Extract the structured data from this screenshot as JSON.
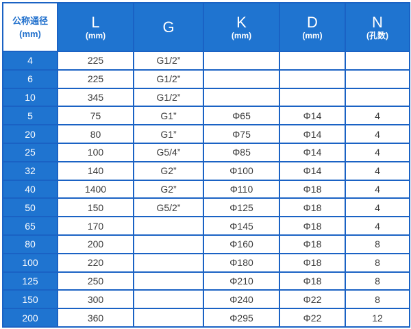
{
  "header": {
    "first": [
      "公称通径",
      "(mm)"
    ],
    "columns": [
      {
        "main": "L",
        "unit": "(mm)"
      },
      {
        "main": "G",
        "unit": ""
      },
      {
        "main": "K",
        "unit": "(mm)"
      },
      {
        "main": "D",
        "unit": "(mm)"
      },
      {
        "main": "N",
        "unit": "(孔数)"
      }
    ]
  },
  "rows": [
    [
      "4",
      "225",
      "G1/2”",
      "",
      "",
      ""
    ],
    [
      "6",
      "225",
      "G1/2”",
      "",
      "",
      ""
    ],
    [
      "10",
      "345",
      "G1/2”",
      "",
      "",
      ""
    ],
    [
      "5",
      "75",
      "G1”",
      "Φ65",
      "Φ14",
      "4"
    ],
    [
      "20",
      "80",
      "G1”",
      "Φ75",
      "Φ14",
      "4"
    ],
    [
      "25",
      "100",
      "G5/4”",
      "Φ85",
      "Φ14",
      "4"
    ],
    [
      "32",
      "140",
      "G2”",
      "Φ100",
      "Φ14",
      "4"
    ],
    [
      "40",
      "1400",
      "G2”",
      "Φ110",
      "Φ18",
      "4"
    ],
    [
      "50",
      "150",
      "G5/2”",
      "Φ125",
      "Φ18",
      "4"
    ],
    [
      "65",
      "170",
      "",
      "Φ145",
      "Φ18",
      "4"
    ],
    [
      "80",
      "200",
      "",
      "Φ160",
      "Φ18",
      "8"
    ],
    [
      "100",
      "220",
      "",
      "Φ180",
      "Φ18",
      "8"
    ],
    [
      "125",
      "250",
      "",
      "Φ210",
      "Φ18",
      "8"
    ],
    [
      "150",
      "300",
      "",
      "Φ240",
      "Φ22",
      "8"
    ],
    [
      "200",
      "360",
      "",
      "Φ295",
      "Φ22",
      "12"
    ]
  ]
}
